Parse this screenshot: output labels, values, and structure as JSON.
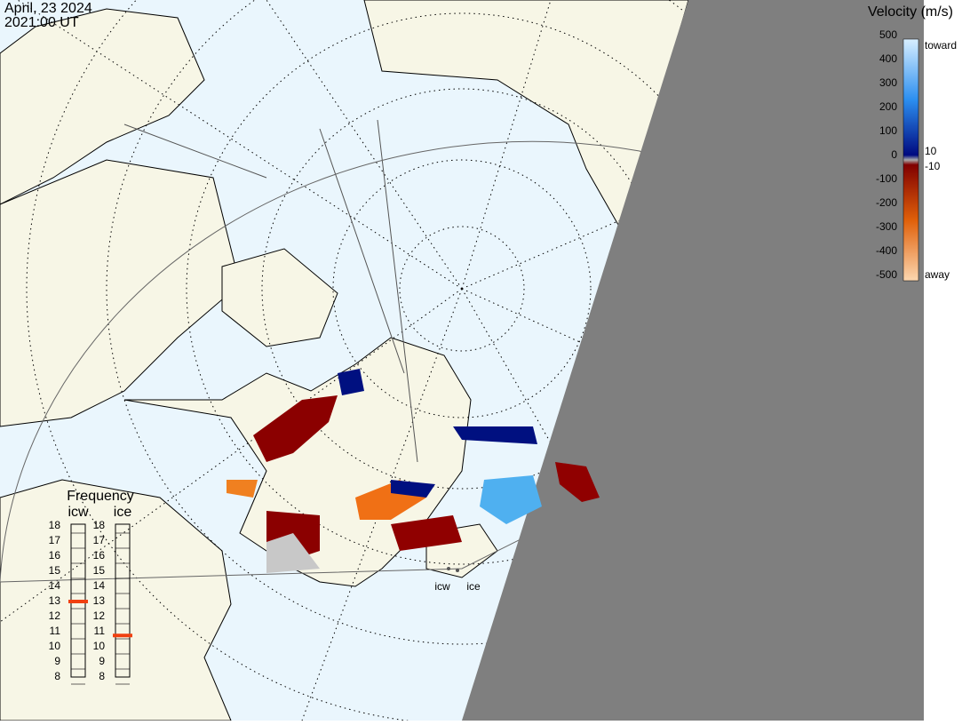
{
  "header": {
    "date": "April, 23 2024",
    "time": "2021:00 UT"
  },
  "velocity_scale": {
    "title": "Velocity (m/s)",
    "ticks": [
      500,
      400,
      300,
      200,
      100,
      0,
      -100,
      -200,
      -300,
      -400,
      -500
    ],
    "inner_ticks": [
      10,
      -10
    ],
    "toward": "toward",
    "away": "away"
  },
  "frequency": {
    "title": "Frequency",
    "radars": [
      {
        "name": "icw",
        "ticks": [
          18,
          17,
          16,
          15,
          14,
          13,
          12,
          11,
          10,
          9,
          8
        ],
        "value": 13
      },
      {
        "name": "ice",
        "ticks": [
          18,
          17,
          16,
          15,
          14,
          13,
          12,
          11,
          10,
          9,
          8
        ],
        "value": 10.75
      }
    ]
  },
  "radar_sites": [
    "icw",
    "ice"
  ]
}
